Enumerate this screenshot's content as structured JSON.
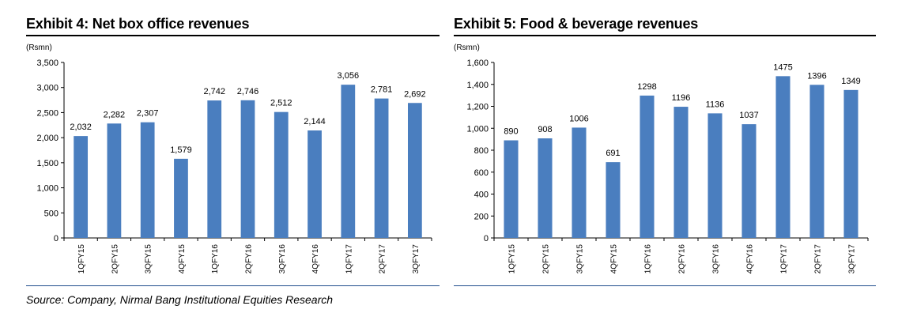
{
  "exhibit4": {
    "title": "Exhibit 4: Net box office revenues"
  },
  "exhibit5": {
    "title": "Exhibit 5: Food & beverage revenues"
  },
  "source": "Source: Company, Nirmal Bang Institutional Equities Research",
  "colors": {
    "bar": "#4a7ebf",
    "axis": "#000000"
  },
  "chart_data": [
    {
      "type": "bar",
      "title": "Exhibit 4: Net box office revenues",
      "unit_label": "(Rsmn)",
      "xlabel": "",
      "ylabel": "",
      "categories": [
        "1QFY15",
        "2QFY15",
        "3QFY15",
        "4QFY15",
        "1QFY16",
        "2QFY16",
        "3QFY16",
        "4QFY16",
        "1QFY17",
        "2QFY17",
        "3QFY17"
      ],
      "values": [
        2032,
        2282,
        2307,
        1579,
        2742,
        2746,
        2512,
        2144,
        3056,
        2781,
        2692
      ],
      "data_labels": [
        "2,032",
        "2,282",
        "2,307",
        "1,579",
        "2,742",
        "2,746",
        "2,512",
        "2,144",
        "3,056",
        "2,781",
        "2,692"
      ],
      "ylim": [
        0,
        3500
      ],
      "yticks": [
        0,
        500,
        1000,
        1500,
        2000,
        2500,
        3000,
        3500
      ],
      "ytick_labels": [
        "0",
        "500",
        "1,000",
        "1,500",
        "2,000",
        "2,500",
        "3,000",
        "3,500"
      ],
      "grid": false,
      "legend": "none"
    },
    {
      "type": "bar",
      "title": "Exhibit 5: Food & beverage revenues",
      "unit_label": "(Rsmn)",
      "xlabel": "",
      "ylabel": "",
      "categories": [
        "1QFY15",
        "2QFY15",
        "3QFY15",
        "4QFY15",
        "1QFY16",
        "2QFY16",
        "3QFY16",
        "4QFY16",
        "1QFY17",
        "2QFY17",
        "3QFY17"
      ],
      "values": [
        890,
        908,
        1006,
        691,
        1298,
        1196,
        1136,
        1037,
        1475,
        1396,
        1349
      ],
      "data_labels": [
        "890",
        "908",
        "1006",
        "691",
        "1298",
        "1196",
        "1136",
        "1037",
        "1475",
        "1396",
        "1349"
      ],
      "ylim": [
        0,
        1600
      ],
      "yticks": [
        0,
        200,
        400,
        600,
        800,
        1000,
        1200,
        1400,
        1600
      ],
      "ytick_labels": [
        "0",
        "200",
        "400",
        "600",
        "800",
        "1,000",
        "1,200",
        "1,400",
        "1,600"
      ],
      "grid": false,
      "legend": "none"
    }
  ]
}
